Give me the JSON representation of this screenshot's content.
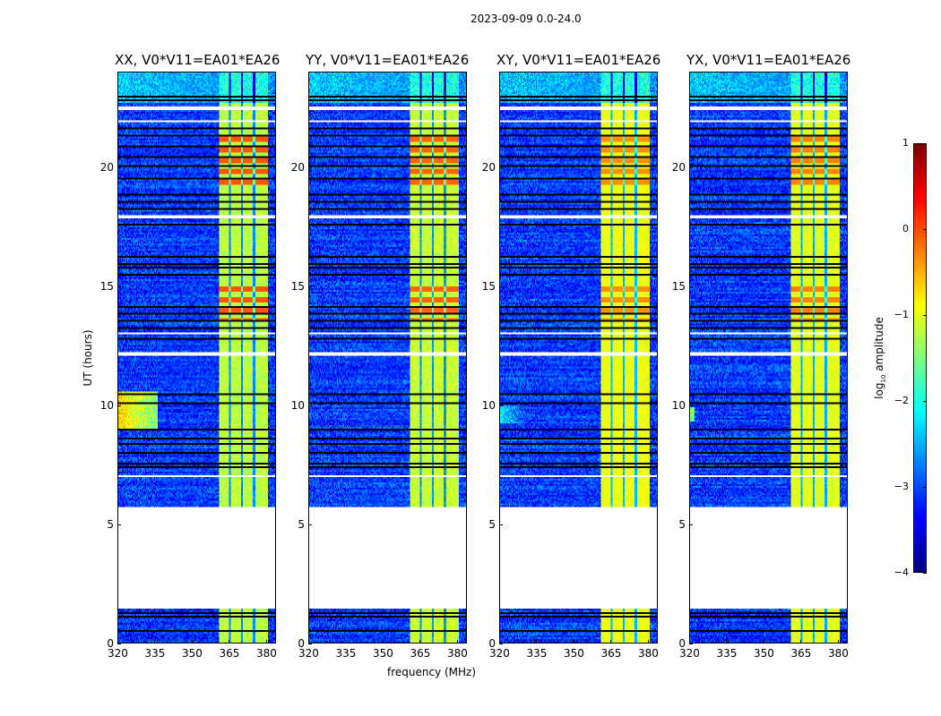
{
  "chart_data": {
    "type": "heatmap",
    "suptitle": "2023-09-09 0.0-24.0",
    "xlabel": "frequency (MHz)",
    "ylabel": "UT (hours)",
    "xlim": [
      320,
      384
    ],
    "ylim": [
      0,
      24
    ],
    "xticks": [
      "320",
      "335",
      "350",
      "365",
      "380"
    ],
    "xtick_values": [
      320,
      335,
      350,
      365,
      380
    ],
    "yticks": [
      "0",
      "5",
      "10",
      "15",
      "20"
    ],
    "ytick_values": [
      0,
      5,
      10,
      15,
      20
    ],
    "colorbar": {
      "label": "log10 amplitude",
      "label_main": "log",
      "label_sub": "10",
      "label_rest": " amplitude",
      "range": [
        -4,
        1
      ],
      "ticks": [
        "1",
        "0",
        "−1",
        "−2",
        "−3",
        "−4"
      ],
      "tick_values": [
        1,
        0,
        -1,
        -2,
        -3,
        -4
      ],
      "colormap": "jet"
    },
    "background_level": -3.1,
    "top_band": {
      "hours": [
        22.7,
        24
      ],
      "level": -2.4
    },
    "rfi_band": {
      "mhz": [
        361,
        381
      ],
      "level": -1.2,
      "subband_edges": [
        365.5,
        370.5,
        375.5
      ]
    },
    "strong_rfi_hours": [
      [
        19.2,
        21.4
      ],
      [
        13.6,
        15.0
      ]
    ],
    "flagged_hours": [
      [
        1.4,
        5.7
      ],
      [
        12.05,
        12.2
      ],
      [
        17.85,
        18.0
      ],
      [
        22.4,
        22.55
      ],
      [
        21.9,
        21.95
      ],
      [
        17.3,
        17.35
      ],
      [
        7.0,
        7.05
      ],
      [
        6.2,
        6.25
      ],
      [
        0.95,
        1.0
      ],
      [
        13.0,
        13.05
      ],
      [
        16.7,
        16.75
      ]
    ],
    "black_rows_hours": [
      23.0,
      22.9,
      21.7,
      21.4,
      20.9,
      20.5,
      20.1,
      19.6,
      18.9,
      18.6,
      18.3,
      17.6,
      16.3,
      16.0,
      15.8,
      15.5,
      14.2,
      13.9,
      13.6,
      13.3,
      12.8,
      10.5,
      10.1,
      9.0,
      8.6,
      8.4,
      8.0,
      7.6,
      7.4,
      1.3,
      1.1,
      0.5
    ],
    "panels": [
      {
        "title": "XX, V0*V11=EA01*EA26",
        "feature": {
          "hours": [
            9.0,
            10.6
          ],
          "mhz": [
            320,
            336
          ],
          "level": -0.7
        },
        "rfi_scale": 1.0
      },
      {
        "title": "YY, V0*V11=EA01*EA26",
        "feature": null,
        "rfi_scale": 0.95
      },
      {
        "title": "XY, V0*V11=EA01*EA26",
        "feature": {
          "hours": [
            9.2,
            10.0
          ],
          "mhz": [
            320,
            330
          ],
          "level": -2.2
        },
        "rfi_scale": 0.8
      },
      {
        "title": "YX, V0*V11=EA01*EA26",
        "feature": {
          "hours": [
            9.3,
            9.9
          ],
          "mhz": [
            320,
            322
          ],
          "level": -1.3
        },
        "rfi_scale": 0.85
      }
    ]
  }
}
